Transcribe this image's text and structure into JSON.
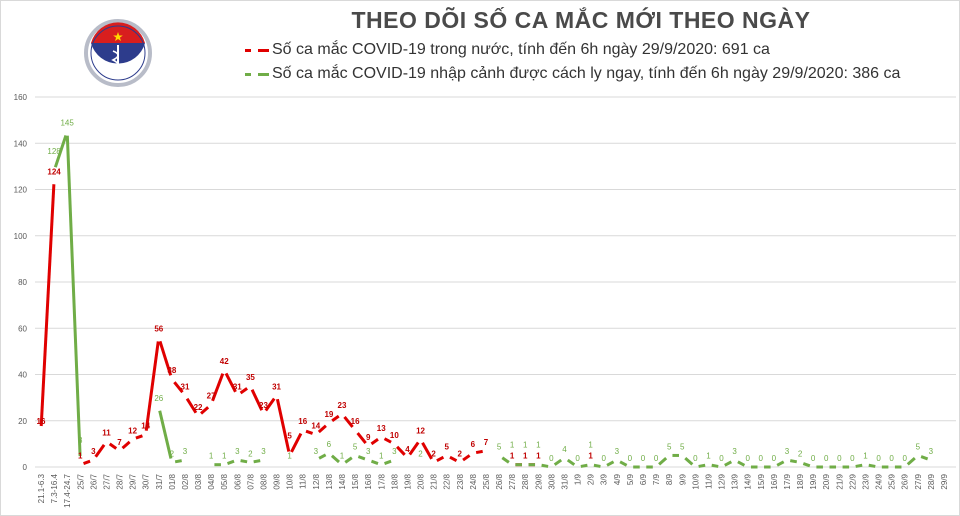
{
  "title": "THEO DÕI SỐ CA MẮC MỚI THEO NGÀY",
  "logo": {
    "text_top": "BỘ Y TẾ",
    "text_bottom": "MINISTRY OF HEALTH"
  },
  "chart_data": {
    "type": "line",
    "title": "THEO DÕI SỐ CA MẮC MỚI THEO NGÀY",
    "xlabel": "",
    "ylabel": "",
    "ylim": [
      0,
      160
    ],
    "yticks": [
      0,
      20,
      40,
      60,
      80,
      100,
      120,
      140,
      160
    ],
    "grid": true,
    "legend_position": "top",
    "categories": [
      "21.1-6.3",
      "7.3-16.4",
      "17.4-24.7",
      "25/7",
      "26/7",
      "27/7",
      "28/7",
      "29/7",
      "30/7",
      "31/7",
      "01/8",
      "02/8",
      "03/8",
      "04/8",
      "05/8",
      "06/8",
      "07/8",
      "08/8",
      "09/8",
      "10/8",
      "11/8",
      "12/8",
      "13/8",
      "14/8",
      "15/8",
      "16/8",
      "17/8",
      "18/8",
      "19/8",
      "20/8",
      "21/8",
      "22/8",
      "23/8",
      "24/8",
      "25/8",
      "26/8",
      "27/8",
      "28/8",
      "29/8",
      "30/8",
      "31/8",
      "1/9",
      "2/9",
      "3/9",
      "4/9",
      "5/9",
      "6/9",
      "7/9",
      "8/9",
      "9/9",
      "10/9",
      "11/9",
      "12/9",
      "13/9",
      "14/9",
      "15/9",
      "16/9",
      "17/9",
      "18/9",
      "19/9",
      "20/9",
      "21/9",
      "22/9",
      "23/9",
      "24/9",
      "25/9",
      "26/9",
      "27/9",
      "28/9",
      "29/9"
    ],
    "series": [
      {
        "name": "Số ca mắc COVID-19 trong nước, tính đến 6h ngày 29/9/2020: 691 ca",
        "color": "#e00000",
        "values": [
          16,
          124,
          null,
          1,
          3,
          11,
          7,
          12,
          14,
          56,
          38,
          31,
          22,
          27,
          42,
          31,
          35,
          23,
          31,
          5,
          16,
          14,
          19,
          23,
          16,
          9,
          13,
          10,
          4,
          12,
          2,
          5,
          2,
          6,
          7,
          null,
          1,
          1,
          1,
          null,
          null,
          null,
          1,
          null,
          null,
          null,
          null,
          null,
          null,
          null,
          null,
          null,
          null,
          null,
          null,
          null,
          null,
          null,
          null,
          null,
          null,
          null,
          null,
          null,
          null,
          null,
          null,
          null,
          null,
          null
        ]
      },
      {
        "name": "Số ca mắc COVID-19 nhập cảnh được cách ly ngay, tính đến 6h ngày 29/9/2020: 386 ca",
        "color": "#70ad47",
        "values": [
          null,
          128,
          145,
          3,
          null,
          null,
          null,
          null,
          null,
          26,
          2,
          3,
          null,
          1,
          1,
          3,
          2,
          3,
          null,
          1,
          null,
          3,
          6,
          1,
          5,
          3,
          1,
          3,
          null,
          2,
          null,
          null,
          null,
          null,
          null,
          5,
          1,
          1,
          1,
          0,
          4,
          0,
          1,
          0,
          3,
          0,
          0,
          0,
          5,
          5,
          0,
          1,
          0,
          3,
          0,
          0,
          0,
          3,
          2,
          0,
          0,
          0,
          0,
          1,
          0,
          0,
          0,
          5,
          3,
          null
        ]
      }
    ]
  }
}
